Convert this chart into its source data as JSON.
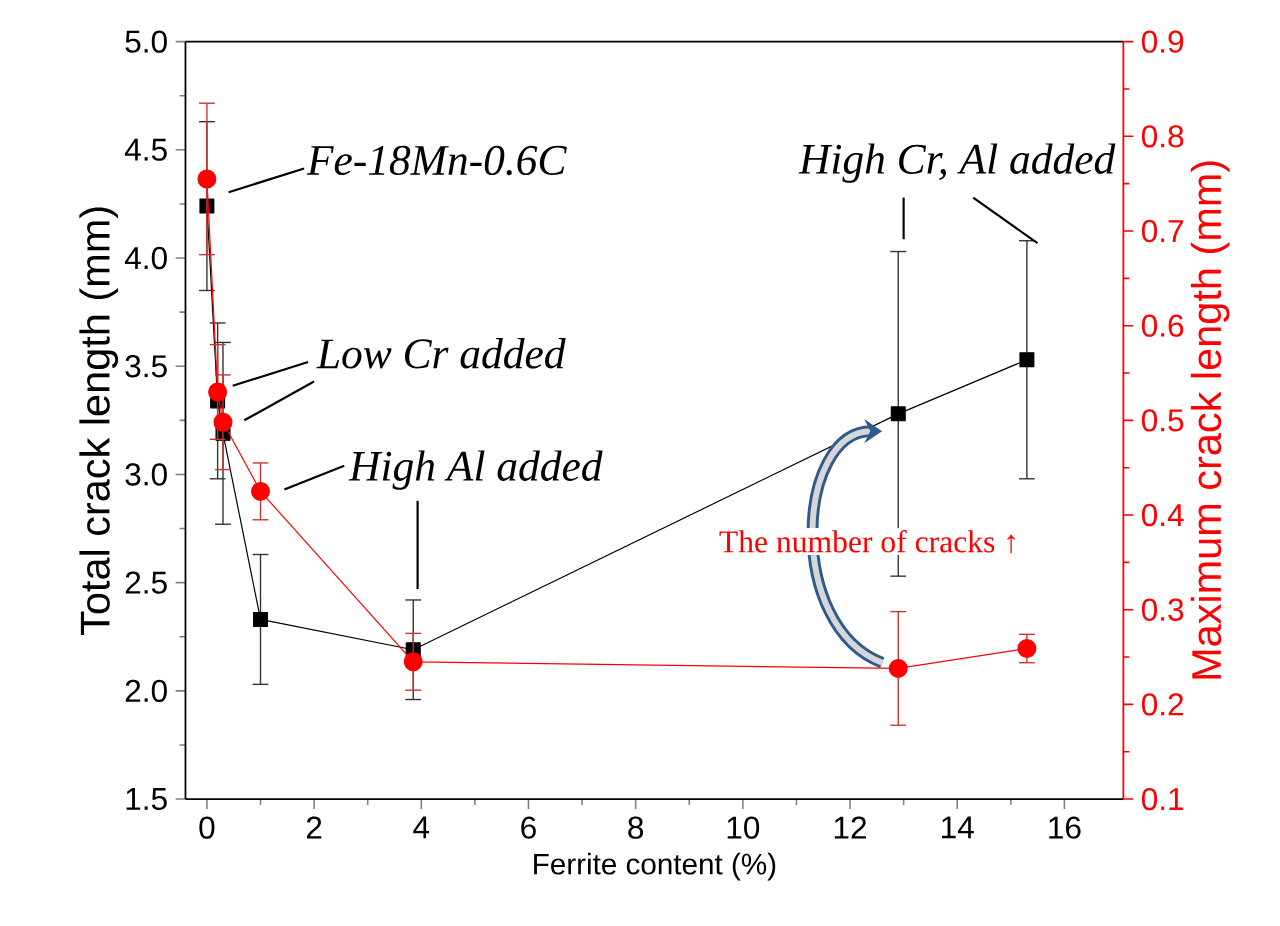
{
  "chart_data": {
    "type": "line",
    "xlabel": "Ferrite content (%)",
    "ylabel": "Total crack length (mm)",
    "y2label": "Maximum crack length (mm)",
    "x": [
      0,
      0.2,
      0.3,
      1.0,
      3.85,
      12.9,
      15.3
    ],
    "series": [
      {
        "color": "#000000",
        "marker": "square",
        "values": [
          4.24,
          3.34,
          3.19,
          2.33,
          2.19,
          3.28,
          3.53
        ],
        "errors": [
          0.39,
          0.36,
          0.42,
          0.3,
          0.23,
          0.75,
          0.55
        ]
      },
      {
        "color": "#ff0000",
        "marker": "circle",
        "axis": "y2",
        "values": [
          0.755,
          0.53,
          0.498,
          0.425,
          0.245,
          0.238,
          0.259
        ],
        "errors": [
          0.08,
          0.05,
          0.05,
          0.03,
          0.03,
          0.06,
          0.015
        ]
      }
    ],
    "xlim": [
      -0.4,
      17.1
    ],
    "xticks": [
      0,
      2,
      4,
      6,
      8,
      10,
      12,
      14,
      16
    ],
    "ylim": [
      1.5,
      5.0
    ],
    "yticks": [
      1.5,
      {
        "value": 2,
        "label": "2.0"
      },
      2.5,
      {
        "value": 3,
        "label": "3.0"
      },
      3.5,
      {
        "value": 4,
        "label": "4.0"
      },
      4.5,
      {
        "value": 5,
        "label": "5.0"
      }
    ],
    "y2lim": [
      0.1,
      0.9
    ],
    "y2ticks": [
      0.1,
      0.2,
      0.3,
      0.4,
      0.5,
      0.6,
      0.7,
      0.8,
      0.9
    ],
    "annotations": [
      {
        "text": "*Fe-18Mn-0.6C*",
        "x": 0,
        "y": 4.24
      },
      {
        "text": "*Low Cr added*",
        "x": 0.2,
        "y": 3.34
      },
      {
        "text": "*High Al added*",
        "x": 3.85,
        "y": 2.42
      },
      {
        "text": "*High Cr, Al added*",
        "x": 12.9,
        "y": 4.02
      },
      "The number of cracks ↑"
    ]
  }
}
